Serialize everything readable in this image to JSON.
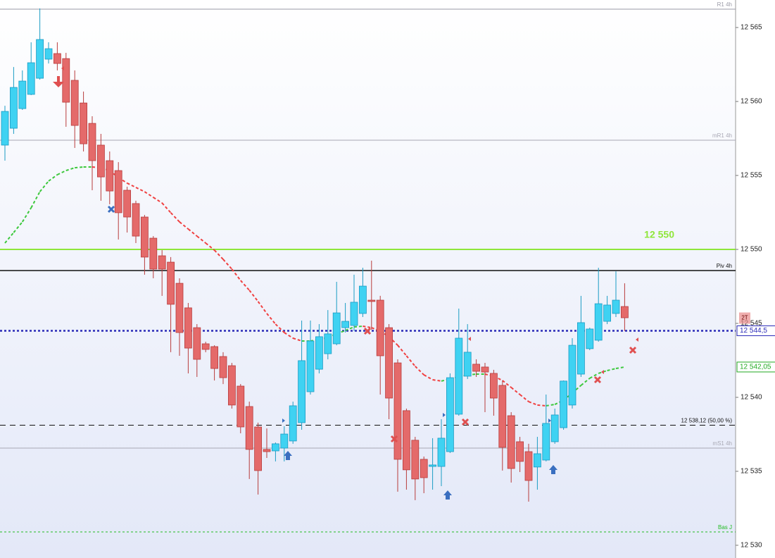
{
  "chart_data": {
    "type": "candlestick",
    "ylim": [
      12529.14,
      12566.86
    ],
    "yticks": [
      {
        "value": 12530,
        "label": "12 530"
      },
      {
        "value": 12535,
        "label": "12 535"
      },
      {
        "value": 12540,
        "label": "12 540"
      },
      {
        "value": 12545,
        "label": "12 545"
      },
      {
        "value": 12550,
        "label": "12 550"
      },
      {
        "value": 12555,
        "label": "12 555"
      },
      {
        "value": 12560,
        "label": "12 560"
      },
      {
        "value": 12565,
        "label": "12 565"
      }
    ],
    "up_color": "#3fd2f2",
    "down_color": "#e46a6a",
    "open": [
      12557.05,
      12558.19,
      12559.52,
      12560.48,
      12561.57,
      12562.86,
      12563.24,
      12562.9,
      12561.43,
      12559.9,
      12558.52,
      12557.05,
      12556,
      12555.33,
      12554,
      12553.1,
      12552.19,
      12550.76,
      12549.57,
      12549.14,
      12547.71,
      12546.05,
      12544.71,
      12543.62,
      12543.43,
      12542.76,
      12542.14,
      12540.76,
      12539.38,
      12538,
      12536.48,
      12536.38,
      12536.57,
      12537.05,
      12538.29,
      12540.38,
      12541.9,
      12542.95,
      12543.62,
      12544.71,
      12544.86,
      12545.67,
      12546.57,
      12546.57,
      12544.71,
      12542.33,
      12539.1,
      12537.1,
      12535.81,
      12535.33,
      12535.33,
      12536.33,
      12538.86,
      12541.43,
      12542.24,
      12542.05,
      12541.62,
      12540.81,
      12538.76,
      12537,
      12536.33,
      12535.29,
      12535.76,
      12537,
      12537.95,
      12539.48,
      12541.57,
      12543.29,
      12543.86,
      12545.14,
      12545.67,
      12546.14
    ],
    "high": [
      12559.71,
      12562.33,
      12562.1,
      12564,
      12566.29,
      12564,
      12564,
      12563.29,
      12562.1,
      12560.67,
      12559,
      12557.81,
      12556.62,
      12555.9,
      12554.24,
      12553.29,
      12552.33,
      12550.9,
      12549.95,
      12549.48,
      12548.05,
      12546.38,
      12544.95,
      12543.76,
      12543.52,
      12543.05,
      12542.33,
      12540.9,
      12539.71,
      12538.29,
      12537.9,
      12536.95,
      12538.05,
      12539.71,
      12545.19,
      12545.19,
      12544.95,
      12545.9,
      12547.81,
      12546.38,
      12548.29,
      12548.76,
      12549.24,
      12546.86,
      12544.95,
      12542.57,
      12539.24,
      12537.33,
      12536,
      12537.24,
      12538.52,
      12541.62,
      12546,
      12544.95,
      12542.57,
      12542.33,
      12541.86,
      12541.14,
      12539,
      12537.33,
      12536.86,
      12537.33,
      12540.19,
      12539.24,
      12541.14,
      12544,
      12546.86,
      12544.71,
      12548.76,
      12546.86,
      12548.52,
      12547.71
    ],
    "low": [
      12556,
      12557.81,
      12559.43,
      12560.43,
      12561.48,
      12562.57,
      12562.1,
      12558.29,
      12556.86,
      12556.62,
      12554,
      12553.29,
      12553.05,
      12550.67,
      12551.14,
      12550.43,
      12548.29,
      12548.05,
      12546.86,
      12543.05,
      12542.81,
      12541.62,
      12541.38,
      12543.05,
      12541.14,
      12540.9,
      12539.24,
      12537.57,
      12534.48,
      12533.43,
      12535.9,
      12535.67,
      12535.67,
      12536.86,
      12537.81,
      12540.19,
      12541.62,
      12542.57,
      12543.52,
      12544.38,
      12544.48,
      12545.43,
      12544.57,
      12540.19,
      12538.52,
      12533.62,
      12533.76,
      12533.05,
      12533.52,
      12533.76,
      12534,
      12536.24,
      12538.76,
      12541.24,
      12541.38,
      12539,
      12538.76,
      12535.05,
      12534.24,
      12534.95,
      12532.95,
      12533.76,
      12535.67,
      12536.86,
      12537.81,
      12539.24,
      12541.38,
      12543.19,
      12543.76,
      12544.95,
      12545.43,
      12544.48
    ],
    "close": [
      12559.33,
      12560.95,
      12561.38,
      12562.62,
      12564.19,
      12563.57,
      12562.57,
      12559.95,
      12558.38,
      12557.14,
      12556,
      12554.9,
      12553.95,
      12552.48,
      12552.19,
      12550.9,
      12549.48,
      12548.67,
      12548.67,
      12546.29,
      12544.38,
      12543.33,
      12542.57,
      12543.24,
      12541.95,
      12541.33,
      12539.48,
      12538,
      12536.48,
      12535.05,
      12536.33,
      12536.86,
      12537.52,
      12539.43,
      12542.48,
      12543.81,
      12544.1,
      12544.29,
      12545.71,
      12545.14,
      12546.43,
      12547.52,
      12546.48,
      12542.81,
      12539.95,
      12535.81,
      12535.1,
      12534.48,
      12534.57,
      12535.43,
      12537.24,
      12541.33,
      12544,
      12543.05,
      12541.76,
      12541.71,
      12539.95,
      12536.62,
      12535.19,
      12535.67,
      12534.38,
      12536.19,
      12538.24,
      12538.81,
      12541.1,
      12543.52,
      12545.05,
      12544.62,
      12546.33,
      12546.24,
      12546.57,
      12545.38
    ],
    "moving_average": {
      "up_color": "#3cc83c",
      "down_color": "#f04040",
      "values": [
        12550.43,
        12551.14,
        12551.86,
        12552.81,
        12553.9,
        12554.62,
        12555.05,
        12555.33,
        12555.52,
        12555.57,
        12555.57,
        12555.52,
        12555.33,
        12554.86,
        12554.48,
        12554.19,
        12553.9,
        12553.52,
        12553.14,
        12552.48,
        12551.86,
        12551.38,
        12550.9,
        12550.43,
        12549.95,
        12549.33,
        12548.67,
        12547.9,
        12547.24,
        12546.48,
        12545.67,
        12544.95,
        12544.38,
        12544,
        12543.81,
        12543.81,
        12543.9,
        12544.05,
        12544.29,
        12544.52,
        12544.76,
        12544.81,
        12544.71,
        12544.48,
        12544.1,
        12543.52,
        12542.81,
        12542.1,
        12541.52,
        12541.19,
        12541.1,
        12541.24,
        12541.38,
        12541.52,
        12541.57,
        12541.57,
        12541.43,
        12541.14,
        12540.67,
        12540.19,
        12539.71,
        12539.48,
        12539.43,
        12539.52,
        12539.81,
        12540.29,
        12540.81,
        12541.29,
        12541.62,
        12541.81,
        12541.95,
        12542.05
      ]
    },
    "levels": [
      {
        "label": "R1 4h",
        "value": 12566.24,
        "color": "#9a9aa6",
        "style": "solid",
        "width": 1
      },
      {
        "label": "mR1 4h",
        "value": 12557.38,
        "color": "#a8a8b4",
        "style": "solid",
        "width": 1
      },
      {
        "label": "12 550",
        "value": 12550,
        "color": "#8fe63a",
        "style": "solid",
        "width": 2,
        "emphasis": true
      },
      {
        "label": "Piv 4h",
        "value": 12548.57,
        "color": "#111111",
        "style": "solid",
        "width": 1.5
      },
      {
        "value": 12544.5,
        "color": "#2a2ab8",
        "style": "dotted",
        "width": 2.5
      },
      {
        "label": "12 538,12 (50,00 %)",
        "value": 12538.12,
        "color": "#111111",
        "style": "dashed",
        "width": 1
      },
      {
        "label": "mS1 4h",
        "value": 12536.57,
        "color": "#a8a8b4",
        "style": "solid",
        "width": 1
      },
      {
        "label": "Bas J",
        "value": 12530.9,
        "color": "#22bb22",
        "style": "dotted",
        "width": 1
      }
    ],
    "axis_tags": [
      {
        "label": "2T",
        "color": "#e88a8a"
      },
      {
        "label": "12 544,5",
        "value": 12544.5,
        "color": "#2a2ab8"
      },
      {
        "label": "12 542,05",
        "value": 12542.05,
        "color": "#22aa22"
      }
    ]
  }
}
